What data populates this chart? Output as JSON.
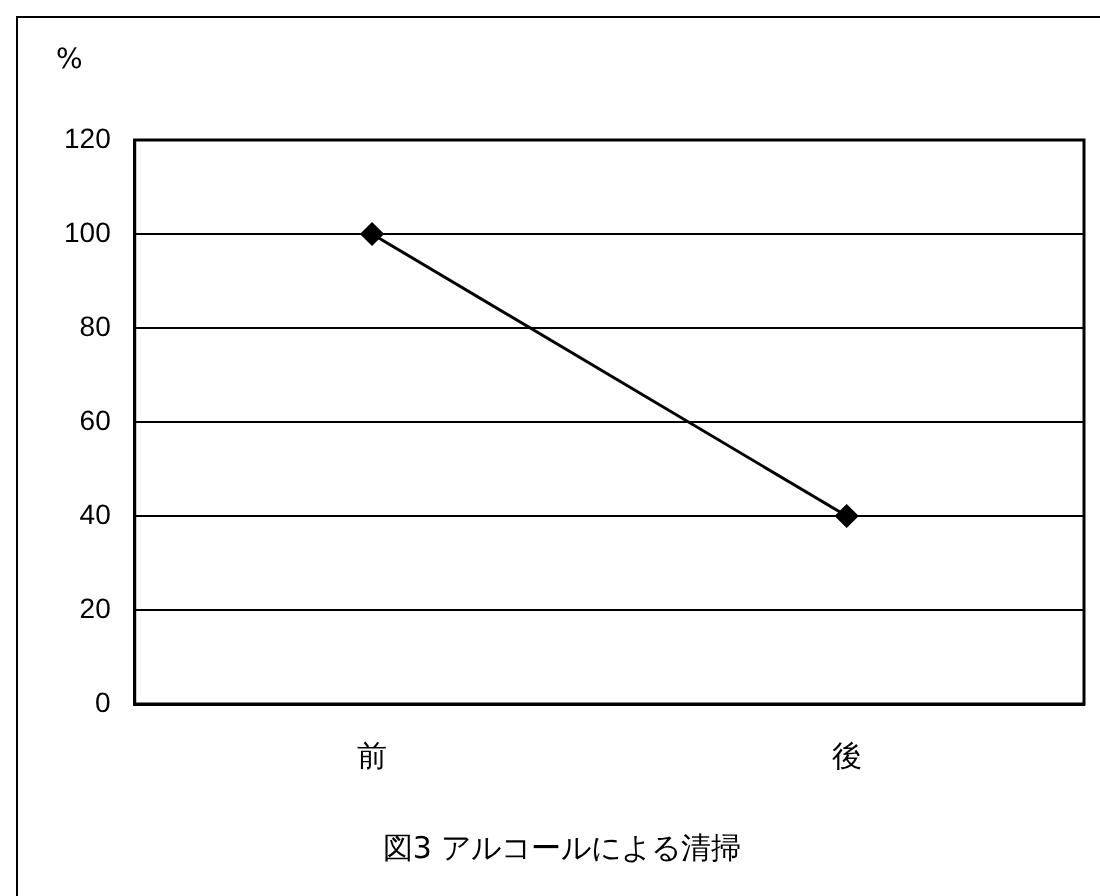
{
  "chart_data": {
    "type": "line",
    "title": "図3 アルコールによる清掃",
    "ylabel": "%",
    "categories": [
      "前",
      "後"
    ],
    "series": [
      {
        "color": "#000000",
        "values": [
          100,
          40
        ]
      }
    ],
    "ylim": [
      0,
      120
    ],
    "yticks": [
      0,
      20,
      40,
      60,
      80,
      100,
      120
    ],
    "grid": "y",
    "legend": false,
    "marker": "diamond",
    "line_style": "solid"
  }
}
